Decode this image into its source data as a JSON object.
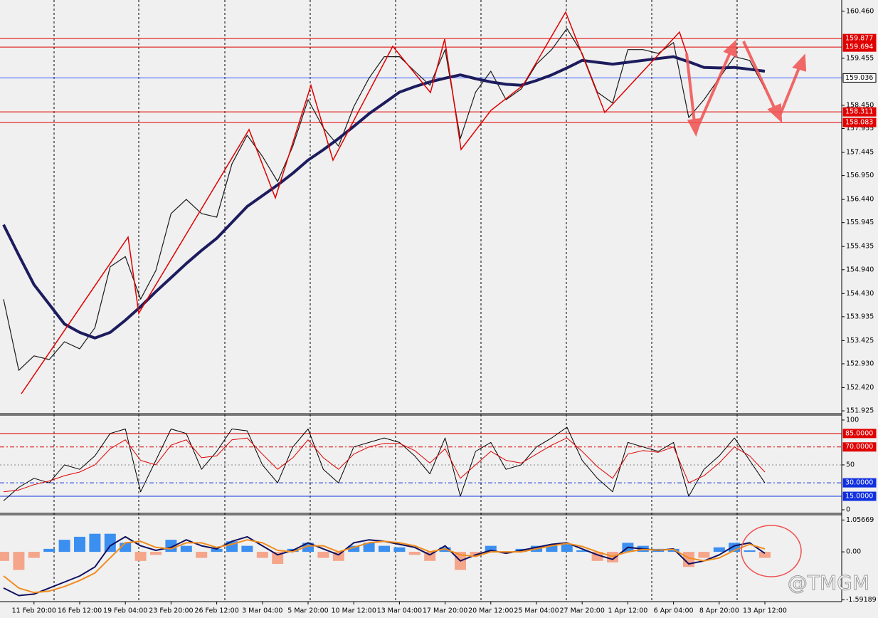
{
  "watermark": "@TMGM",
  "chart_data": [
    {
      "type": "line",
      "categories": [
        null,
        null,
        "11 Feb 20:00",
        null,
        null,
        "16 Feb 12:00",
        null,
        null,
        "19 Feb 04:00",
        null,
        null,
        "23 Feb 20:00",
        null,
        null,
        "26 Feb 12:00",
        null,
        null,
        "3 Mar 04:00",
        null,
        null,
        "5 Mar 20:00",
        null,
        null,
        "10 Mar 12:00",
        null,
        null,
        "13 Mar 04:00",
        null,
        null,
        "17 Mar 20:00",
        null,
        null,
        "20 Mar 12:00",
        null,
        null,
        "25 Mar 04:00",
        null,
        null,
        "27 Mar 20:00",
        null,
        null,
        "1 Apr 12:00",
        null,
        null,
        "6 Apr 04:00",
        null,
        null,
        "8 Apr 20:00",
        null,
        null,
        "13 Apr 12:00"
      ],
      "series": [
        {
          "color": "#1a1a1a",
          "width": 1.2,
          "values": [
            154.31,
            152.79,
            153.1,
            153.02,
            153.4,
            153.25,
            153.7,
            155.0,
            155.22,
            154.31,
            154.92,
            156.14,
            156.44,
            156.14,
            156.06,
            157.2,
            157.81,
            157.36,
            156.82,
            157.58,
            158.57,
            157.97,
            157.58,
            158.42,
            159.03,
            159.49,
            159.49,
            159.18,
            158.88,
            159.64,
            157.74,
            158.73,
            159.18,
            158.57,
            158.8,
            159.33,
            159.64,
            160.09,
            159.56,
            158.73,
            158.5,
            159.64,
            159.64,
            159.56,
            159.79,
            158.19,
            158.57,
            159.03,
            159.49,
            159.41,
            158.8
          ]
        },
        {
          "color": "#1c1c5e",
          "width": 4,
          "values": [
            155.9,
            155.25,
            154.62,
            154.2,
            153.78,
            153.6,
            153.48,
            153.6,
            153.86,
            154.15,
            154.47,
            154.77,
            155.07,
            155.35,
            155.61,
            155.95,
            156.29,
            156.52,
            156.75,
            157.0,
            157.28,
            157.5,
            157.74,
            158.0,
            158.27,
            158.5,
            158.73,
            158.85,
            158.95,
            159.03,
            159.1,
            159.02,
            158.95,
            158.9,
            158.88,
            158.98,
            159.1,
            159.25,
            159.41,
            159.37,
            159.33,
            159.37,
            159.41,
            159.45,
            159.49,
            159.38,
            159.26,
            159.25,
            159.26,
            159.22,
            159.18
          ]
        }
      ],
      "ylim": [
        151.88,
        160.7
      ],
      "yticks": [
        {
          "value": 160.46,
          "label": "160.460"
        },
        159.455,
        {
          "value": 158.45,
          "label": "158.450"
        },
        157.955,
        157.445,
        {
          "value": 156.95,
          "label": "156.950"
        },
        {
          "value": 156.44,
          "label": "156.440"
        },
        155.945,
        155.435,
        {
          "value": 154.94,
          "label": "154.940"
        },
        {
          "value": 154.43,
          "label": "154.430"
        },
        153.935,
        153.425,
        {
          "value": 152.93,
          "label": "152.930"
        },
        {
          "value": 152.42,
          "label": "152.420"
        },
        151.925
      ],
      "levels": [
        {
          "value": 159.877,
          "color": "#e00000",
          "label_fill": "#e00000",
          "text_color": "#ffffff",
          "style": "solid"
        },
        {
          "value": 159.694,
          "color": "#e00000",
          "label_fill": "#e00000",
          "text_color": "#ffffff",
          "style": "solid"
        },
        {
          "value": 159.036,
          "color": "#3a5bff",
          "label_fill": "#ffffff",
          "text_color": "#000000",
          "style": "solid"
        },
        {
          "value": 158.311,
          "color": "#e00000",
          "label_fill": "#e00000",
          "text_color": "#ffffff",
          "style": "solid"
        },
        {
          "value": 158.083,
          "color": "#e00000",
          "label_fill": "#e00000",
          "text_color": "#ffffff",
          "style": "solid"
        }
      ]
    },
    {
      "type": "line",
      "series": [
        {
          "color": "#000000",
          "width": 1,
          "values": [
            10,
            25,
            35,
            30,
            50,
            45,
            60,
            85,
            90,
            20,
            55,
            90,
            85,
            45,
            65,
            90,
            88,
            50,
            30,
            70,
            90,
            45,
            30,
            70,
            75,
            80,
            75,
            60,
            40,
            80,
            15,
            65,
            75,
            45,
            50,
            70,
            80,
            92,
            55,
            35,
            20,
            75,
            70,
            65,
            75,
            15,
            45,
            60,
            80,
            55,
            30
          ]
        },
        {
          "color": "#e00000",
          "width": 1,
          "values": [
            20,
            22,
            28,
            32,
            38,
            42,
            50,
            68,
            78,
            55,
            50,
            72,
            78,
            58,
            60,
            78,
            80,
            62,
            45,
            58,
            78,
            58,
            45,
            62,
            70,
            74,
            74,
            66,
            52,
            68,
            35,
            50,
            65,
            55,
            52,
            62,
            72,
            80,
            65,
            48,
            35,
            62,
            66,
            64,
            70,
            30,
            38,
            52,
            70,
            60,
            42
          ]
        }
      ],
      "ylim": [
        -4,
        105.5
      ],
      "yticks": [
        100,
        50,
        0
      ],
      "levels": [
        {
          "value": 85,
          "label": "85.0000",
          "color": "#e00000",
          "label_fill": "#e00000",
          "text_color": "#ffffff",
          "style": "solid"
        },
        {
          "value": 70,
          "label": "70.0000",
          "color": "#e00000",
          "label_fill": "#e00000",
          "text_color": "#ffffff",
          "style": "dash"
        },
        {
          "value": 30,
          "label": "30.0000",
          "color": "#1030e0",
          "label_fill": "#1030e0",
          "text_color": "#ffffff",
          "style": "dash"
        },
        {
          "value": 15,
          "label": "15.0000",
          "color": "#1030e0",
          "label_fill": "#1030e0",
          "text_color": "#ffffff",
          "style": "solid"
        }
      ]
    },
    {
      "type": "bar",
      "series": [
        {
          "type": "bar",
          "color": "#3b8ff0",
          "negative_color": "#f5a58a",
          "values": [
            -0.3,
            -0.6,
            -0.2,
            0.1,
            0.4,
            0.5,
            0.6,
            0.6,
            0.3,
            -0.3,
            -0.1,
            0.4,
            0.2,
            -0.2,
            0.1,
            0.35,
            0.2,
            -0.2,
            -0.4,
            0.1,
            0.3,
            -0.2,
            -0.3,
            0.2,
            0.3,
            0.2,
            0.15,
            -0.1,
            -0.3,
            0.15,
            -0.6,
            -0.1,
            0.2,
            -0.05,
            0.1,
            0.2,
            0.2,
            0.25,
            0.05,
            -0.3,
            -0.35,
            0.3,
            0.2,
            0.1,
            0.1,
            -0.5,
            -0.2,
            0.15,
            0.3,
            0.05,
            -0.2
          ]
        },
        {
          "type": "line",
          "color": "#101060",
          "width": 2,
          "values": [
            -1.2,
            -1.45,
            -1.4,
            -1.2,
            -1.0,
            -0.8,
            -0.5,
            0.2,
            0.5,
            0.2,
            0.05,
            0.15,
            0.4,
            0.2,
            0.1,
            0.35,
            0.5,
            0.2,
            -0.1,
            0.05,
            0.3,
            0.1,
            -0.1,
            0.3,
            0.4,
            0.35,
            0.25,
            0.15,
            -0.1,
            0.2,
            -0.3,
            -0.1,
            0.05,
            -0.05,
            0.05,
            0.15,
            0.25,
            0.3,
            0.1,
            -0.1,
            -0.25,
            0.15,
            0.1,
            0.05,
            0.1,
            -0.4,
            -0.3,
            -0.1,
            0.2,
            0.3,
            -0.05
          ]
        },
        {
          "type": "line",
          "color": "#f08c1e",
          "width": 2,
          "values": [
            -0.8,
            -1.2,
            -1.35,
            -1.3,
            -1.15,
            -0.95,
            -0.7,
            -0.2,
            0.3,
            0.35,
            0.15,
            0.1,
            0.3,
            0.3,
            0.15,
            0.25,
            0.4,
            0.3,
            0.05,
            0.0,
            0.2,
            0.2,
            0.0,
            0.15,
            0.3,
            0.35,
            0.3,
            0.2,
            0.0,
            0.1,
            -0.1,
            -0.15,
            0.0,
            0.0,
            0.0,
            0.1,
            0.2,
            0.28,
            0.18,
            0.0,
            -0.15,
            0.0,
            0.08,
            0.06,
            0.08,
            -0.2,
            -0.3,
            -0.2,
            0.05,
            0.25,
            0.1
          ]
        }
      ],
      "ylim": [
        -1.65,
        1.23
      ],
      "yticks": [
        1.05669,
        {
          "value": 0,
          "label": "0.00"
        },
        -1.59189
      ]
    }
  ]
}
